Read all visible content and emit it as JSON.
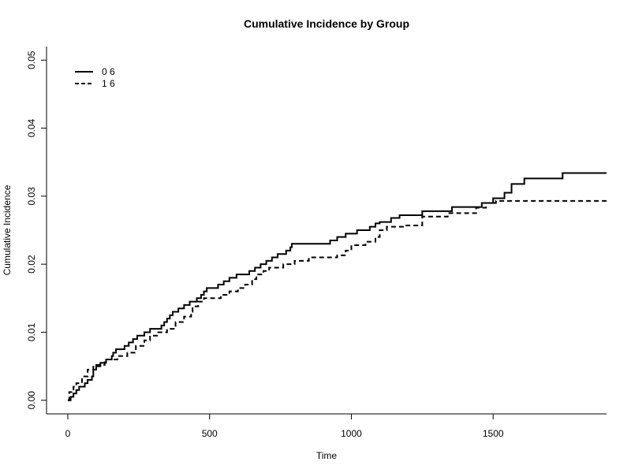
{
  "chart_data": {
    "type": "line",
    "title": "Cumulative Incidence by Group",
    "xlabel": "Time",
    "ylabel": "Cumulative Incidence",
    "xlim": [
      -75,
      1900
    ],
    "ylim": [
      -0.002,
      0.052
    ],
    "x_ticks": [
      0,
      500,
      1000,
      1500
    ],
    "x_tick_labels": [
      "0",
      "500",
      "1000",
      "1500"
    ],
    "y_ticks": [
      0.0,
      0.01,
      0.02,
      0.03,
      0.04,
      0.05
    ],
    "y_tick_labels": [
      "0.00",
      "0.01",
      "0.02",
      "0.03",
      "0.04",
      "0.05"
    ],
    "grid": false,
    "legend_position": "top-left",
    "series": [
      {
        "name": "0 6",
        "line_style": "solid",
        "step": true,
        "points": [
          [
            0,
            0.0
          ],
          [
            10,
            0.0005
          ],
          [
            20,
            0.001
          ],
          [
            30,
            0.0015
          ],
          [
            40,
            0.002
          ],
          [
            60,
            0.0025
          ],
          [
            70,
            0.003
          ],
          [
            85,
            0.0035
          ],
          [
            90,
            0.0045
          ],
          [
            100,
            0.005
          ],
          [
            115,
            0.0055
          ],
          [
            135,
            0.006
          ],
          [
            155,
            0.0065
          ],
          [
            160,
            0.007
          ],
          [
            170,
            0.0075
          ],
          [
            200,
            0.008
          ],
          [
            215,
            0.0085
          ],
          [
            230,
            0.009
          ],
          [
            245,
            0.0095
          ],
          [
            270,
            0.01
          ],
          [
            290,
            0.0105
          ],
          [
            330,
            0.011
          ],
          [
            340,
            0.0115
          ],
          [
            350,
            0.012
          ],
          [
            360,
            0.0125
          ],
          [
            370,
            0.013
          ],
          [
            390,
            0.0135
          ],
          [
            410,
            0.014
          ],
          [
            430,
            0.0145
          ],
          [
            455,
            0.015
          ],
          [
            470,
            0.0155
          ],
          [
            480,
            0.016
          ],
          [
            490,
            0.0165
          ],
          [
            530,
            0.017
          ],
          [
            550,
            0.0175
          ],
          [
            570,
            0.018
          ],
          [
            595,
            0.0185
          ],
          [
            640,
            0.019
          ],
          [
            660,
            0.0195
          ],
          [
            680,
            0.02
          ],
          [
            700,
            0.0205
          ],
          [
            720,
            0.021
          ],
          [
            740,
            0.0215
          ],
          [
            770,
            0.022
          ],
          [
            785,
            0.0225
          ],
          [
            790,
            0.023
          ],
          [
            925,
            0.0235
          ],
          [
            950,
            0.024
          ],
          [
            980,
            0.0245
          ],
          [
            1020,
            0.025
          ],
          [
            1065,
            0.0255
          ],
          [
            1085,
            0.026
          ],
          [
            1100,
            0.0262
          ],
          [
            1140,
            0.0268
          ],
          [
            1170,
            0.0272
          ],
          [
            1250,
            0.0278
          ],
          [
            1355,
            0.0284
          ],
          [
            1460,
            0.029
          ],
          [
            1500,
            0.0297
          ],
          [
            1540,
            0.0305
          ],
          [
            1565,
            0.0318
          ],
          [
            1610,
            0.0326
          ],
          [
            1745,
            0.0334
          ],
          [
            1900,
            0.0334
          ]
        ]
      },
      {
        "name": "1 6",
        "line_style": "dashed",
        "step": true,
        "points": [
          [
            0,
            0.0
          ],
          [
            5,
            0.0012
          ],
          [
            20,
            0.002
          ],
          [
            30,
            0.0025
          ],
          [
            50,
            0.0035
          ],
          [
            70,
            0.0045
          ],
          [
            90,
            0.0052
          ],
          [
            130,
            0.006
          ],
          [
            175,
            0.0065
          ],
          [
            210,
            0.007
          ],
          [
            240,
            0.008
          ],
          [
            270,
            0.0088
          ],
          [
            290,
            0.0095
          ],
          [
            315,
            0.01
          ],
          [
            350,
            0.0105
          ],
          [
            380,
            0.0115
          ],
          [
            410,
            0.0123
          ],
          [
            435,
            0.013
          ],
          [
            440,
            0.0138
          ],
          [
            460,
            0.0145
          ],
          [
            480,
            0.015
          ],
          [
            540,
            0.0155
          ],
          [
            570,
            0.016
          ],
          [
            600,
            0.0165
          ],
          [
            625,
            0.017
          ],
          [
            650,
            0.0178
          ],
          [
            665,
            0.0185
          ],
          [
            690,
            0.019
          ],
          [
            710,
            0.0195
          ],
          [
            760,
            0.02
          ],
          [
            800,
            0.0205
          ],
          [
            850,
            0.021
          ],
          [
            950,
            0.0213
          ],
          [
            980,
            0.022
          ],
          [
            1000,
            0.0228
          ],
          [
            1050,
            0.0233
          ],
          [
            1085,
            0.024
          ],
          [
            1100,
            0.025
          ],
          [
            1125,
            0.0255
          ],
          [
            1190,
            0.0257
          ],
          [
            1250,
            0.027
          ],
          [
            1340,
            0.0275
          ],
          [
            1440,
            0.0283
          ],
          [
            1475,
            0.029
          ],
          [
            1510,
            0.0293
          ],
          [
            1900,
            0.0293
          ]
        ]
      }
    ]
  }
}
